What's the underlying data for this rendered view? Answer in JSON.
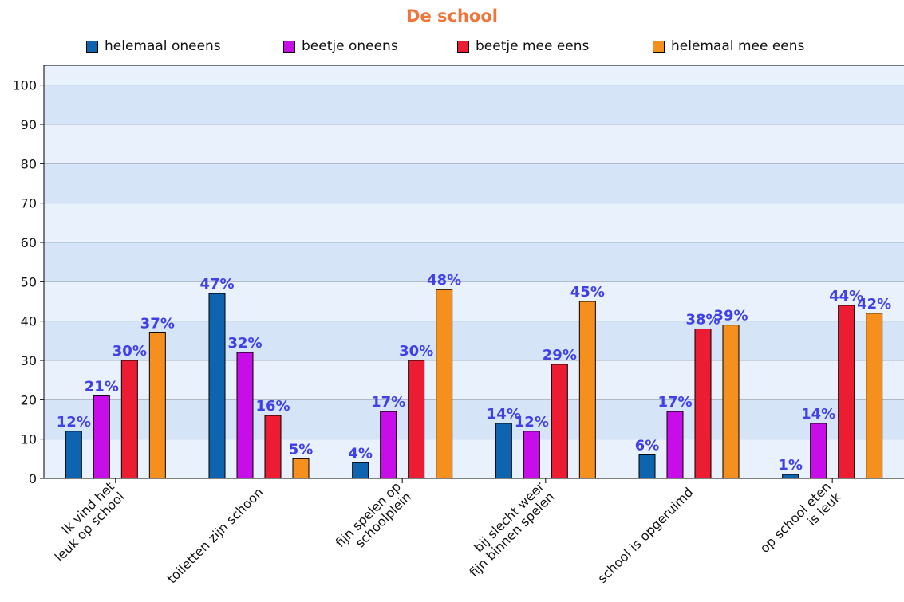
{
  "chart_data": {
    "type": "bar",
    "title": "De school",
    "categories": [
      [
        "Ik vind het",
        "leuk op school"
      ],
      [
        "toiletten zijn schoon"
      ],
      [
        "fijn spelen op",
        "schoolplein"
      ],
      [
        "bij slecht weer",
        "fijn binnen spelen"
      ],
      [
        "school is opgeruimd"
      ],
      [
        "op school eten",
        "is leuk"
      ]
    ],
    "series": [
      {
        "name": "helemaal oneens",
        "color": "#0f64b0",
        "values": [
          12,
          47,
          4,
          14,
          6,
          1
        ]
      },
      {
        "name": "beetje oneens",
        "color": "#c80ee8",
        "values": [
          21,
          32,
          17,
          12,
          17,
          14
        ]
      },
      {
        "name": "beetje mee eens",
        "color": "#ec1c33",
        "values": [
          30,
          16,
          30,
          29,
          38,
          44
        ]
      },
      {
        "name": "helemaal mee eens",
        "color": "#f5901e",
        "values": [
          37,
          5,
          48,
          45,
          39,
          42
        ]
      }
    ],
    "value_suffix": "%",
    "ylim": [
      0,
      105
    ],
    "yticks": [
      0,
      10,
      20,
      30,
      40,
      50,
      60,
      70,
      80,
      90,
      100
    ],
    "grid": true,
    "legend": "top",
    "colors": {
      "band_dark": "#d6e4f8",
      "band_light": "#e9f1fc",
      "grid": "#a8b4c4",
      "label": "#4040e8",
      "title": "#f0743a"
    }
  }
}
